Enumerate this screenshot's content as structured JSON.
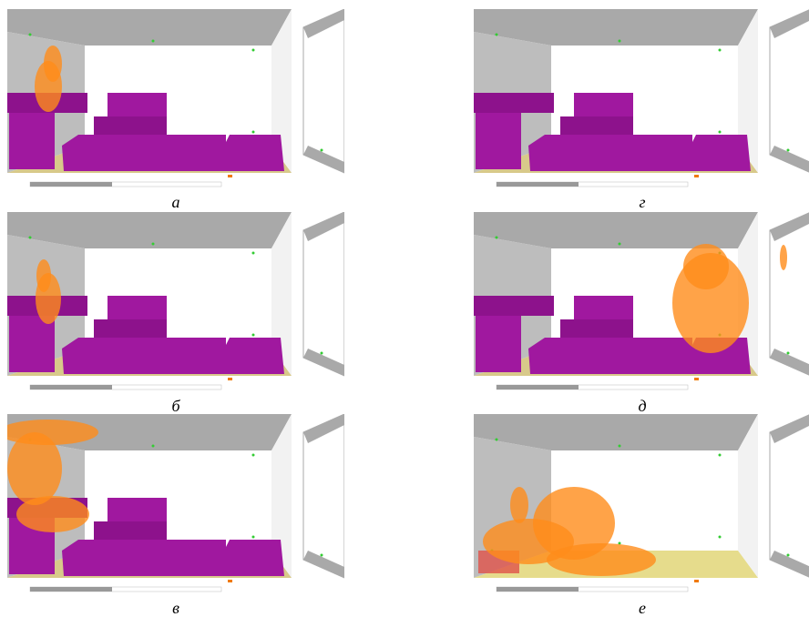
{
  "panels": [
    {
      "caption": "а"
    },
    {
      "caption": "г"
    },
    {
      "caption": "б"
    },
    {
      "caption": "д"
    },
    {
      "caption": "в"
    },
    {
      "caption": "е"
    }
  ]
}
